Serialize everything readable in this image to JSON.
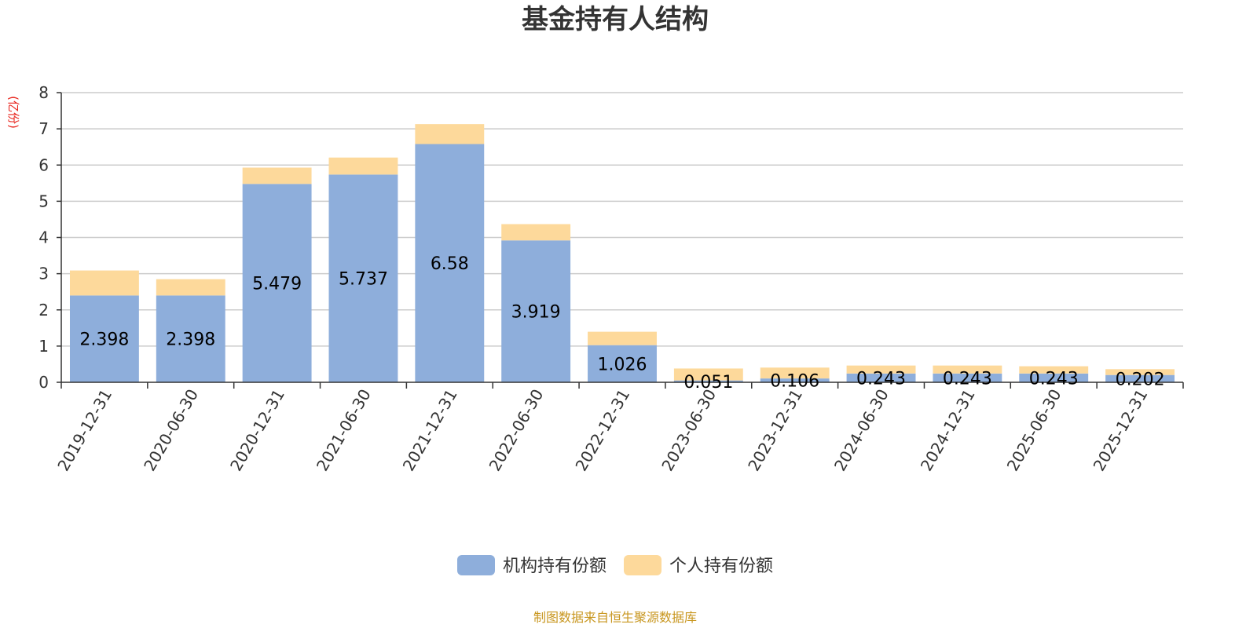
{
  "chart_data": {
    "type": "bar",
    "stacked": true,
    "title": "基金持有人结构",
    "ylabel": "(亿份)",
    "xlabel": "",
    "ylim": [
      0,
      8
    ],
    "yticks": [
      0,
      1,
      2,
      3,
      4,
      5,
      6,
      7,
      8
    ],
    "grid": true,
    "legend_position": "bottom",
    "categories": [
      "2019-12-31",
      "2020-06-30",
      "2020-12-31",
      "2021-06-30",
      "2021-12-31",
      "2022-06-30",
      "2022-12-31",
      "2023-06-30",
      "2023-12-31",
      "2024-06-30",
      "2024-12-31",
      "2025-06-30",
      "2025-12-31"
    ],
    "series": [
      {
        "name": "机构持有份额",
        "color": "#8eaedb",
        "values": [
          2.398,
          2.398,
          5.479,
          5.737,
          6.58,
          3.919,
          1.026,
          0.051,
          0.106,
          0.243,
          0.243,
          0.243,
          0.202
        ],
        "labels": [
          "2.398",
          "2.398",
          "5.479",
          "5.737",
          "6.58",
          "3.919",
          "1.026",
          "0.051",
          "0.106",
          "0.243",
          "0.243",
          "0.243",
          "0.202"
        ]
      },
      {
        "name": "个人持有份额",
        "color": "#fdd99b",
        "values": [
          0.69,
          0.45,
          0.45,
          0.47,
          0.55,
          0.45,
          0.37,
          0.33,
          0.3,
          0.22,
          0.22,
          0.2,
          0.16
        ]
      }
    ]
  },
  "footer": {
    "source": "制图数据来自恒生聚源数据库"
  },
  "colors": {
    "axis": "#333333",
    "grid": "#cccccc",
    "ylabel": "#e8231b",
    "source": "#c8961e"
  }
}
